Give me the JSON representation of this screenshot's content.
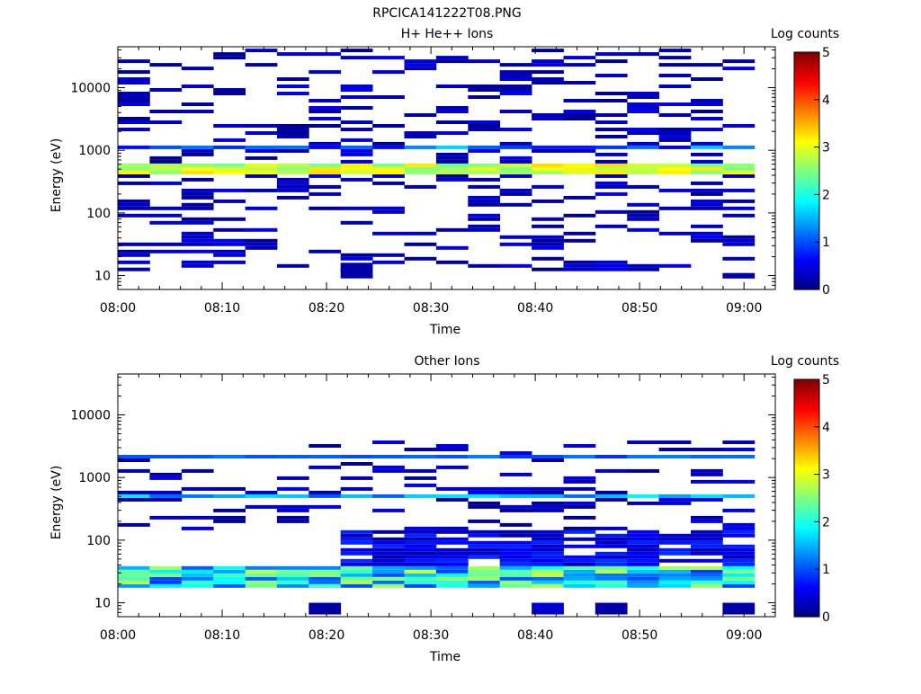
{
  "figure": {
    "title": "RPCICA141222T08.PNG"
  },
  "chart_data": [
    {
      "type": "heatmap",
      "title": "H+ He++ Ions",
      "xlabel": "Time",
      "ylabel": "Energy (eV)",
      "colorbar_label": "Log counts",
      "colorbar_ticks": [
        "0",
        "1",
        "2",
        "3",
        "4",
        "5"
      ],
      "clim": [
        0,
        5
      ],
      "xlim": [
        "08:00",
        "09:03"
      ],
      "ylim": [
        6,
        45000
      ],
      "yscale": "log",
      "xticks": [
        "08:00",
        "08:10",
        "08:20",
        "08:30",
        "08:40",
        "08:50",
        "09:00"
      ],
      "yticks": [
        "10",
        "100",
        "1000",
        "10000"
      ],
      "bands_summary": [
        {
          "energy_range_eV": [
            420,
            620
          ],
          "log_counts": 3.0,
          "time": "08:00-09:01"
        },
        {
          "energy_range_eV": [
            1000,
            1200
          ],
          "log_counts": 1.2,
          "time": "08:00-09:01"
        },
        {
          "energy_range_eV": [
            9,
            16
          ],
          "log_counts": 0.2,
          "time": "08:23-08:26"
        },
        {
          "energy_range_eV": [
            9,
            11
          ],
          "log_counts": 0.2,
          "time": "08:58-09:01"
        }
      ]
    },
    {
      "type": "heatmap",
      "title": "Other Ions",
      "xlabel": "Time",
      "ylabel": "Energy (eV)",
      "colorbar_label": "Log counts",
      "colorbar_ticks": [
        "0",
        "1",
        "2",
        "3",
        "4",
        "5"
      ],
      "clim": [
        0,
        5
      ],
      "xlim": [
        "08:00",
        "09:03"
      ],
      "ylim": [
        6,
        45000
      ],
      "yscale": "log",
      "xticks": [
        "08:00",
        "08:10",
        "08:20",
        "08:30",
        "08:40",
        "08:50",
        "09:00"
      ],
      "yticks": [
        "10",
        "100",
        "1000",
        "10000"
      ],
      "bands_summary": [
        {
          "energy_range_eV": [
            2200,
            2400
          ],
          "log_counts": 1.0,
          "time": "08:00-09:01"
        },
        {
          "energy_range_eV": [
            450,
            560
          ],
          "log_counts": 1.5,
          "time": "08:00-09:01"
        },
        {
          "energy_range_eV": [
            17,
            40
          ],
          "log_counts": 2.0,
          "time": "08:00-09:01"
        },
        {
          "energy_range_eV": [
            40,
            140
          ],
          "log_counts": 0.6,
          "time": "08:20-09:01"
        }
      ]
    }
  ]
}
